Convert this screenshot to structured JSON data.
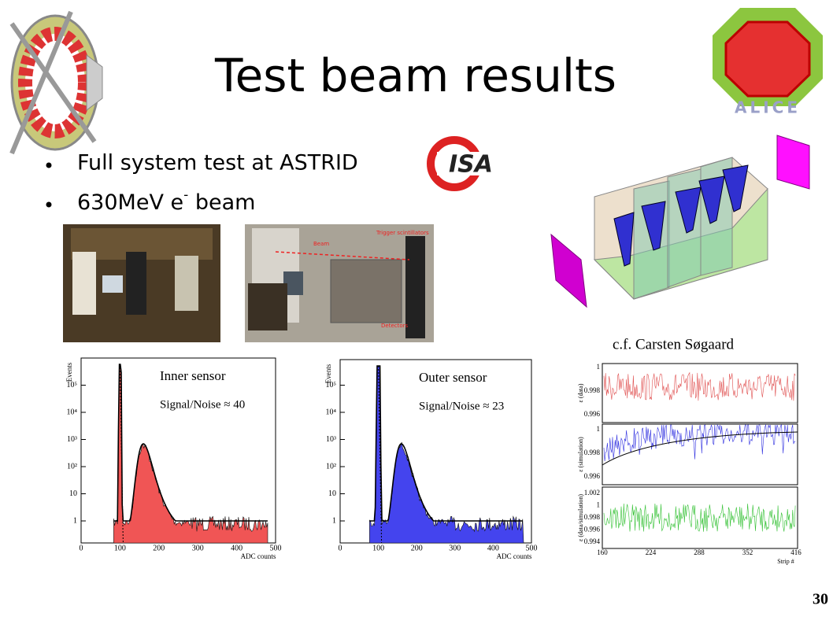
{
  "title": "Test beam results",
  "bullets": [
    {
      "text": "Full system test at ASTRID"
    },
    {
      "text": "630MeV e",
      "sup": "-",
      "after": " beam"
    }
  ],
  "logo_text": "ISA",
  "alice_text": "ALICE",
  "photo_labels": [
    "Beam",
    "Trigger scintillators",
    "Detectors"
  ],
  "credit": "c.f. Carsten Søgaard",
  "page_number": "30",
  "plots": [
    {
      "label": "Inner sensor",
      "snr": "Signal/Noise ≈ 40",
      "y_label": "Events",
      "x_label": "ADC counts",
      "yticks": [
        "1",
        "10",
        "10²",
        "10³",
        "10⁴",
        "10⁵"
      ],
      "xticks": [
        "0",
        "100",
        "200",
        "300",
        "400",
        "500"
      ]
    },
    {
      "label": "Outer sensor",
      "snr": "Signal/Noise ≈ 23",
      "y_label": "Events",
      "x_label": "ADC counts",
      "yticks": [
        "1",
        "10",
        "10²",
        "10³",
        "10⁴",
        "10⁵"
      ],
      "xticks": [
        "0",
        "100",
        "200",
        "300",
        "400",
        "500"
      ]
    }
  ],
  "efficiency": {
    "panels": [
      {
        "y_label": "ε (data)",
        "yticks": [
          "0.996",
          "0.998",
          "1"
        ]
      },
      {
        "y_label": "ε (simulation)",
        "yticks": [
          "0.996",
          "0.998",
          "1"
        ]
      },
      {
        "y_label": "ε (data/simulation)",
        "yticks": [
          "0.994",
          "0.996",
          "0.998",
          "1",
          "1.002"
        ]
      }
    ],
    "xticks": [
      "160",
      "224",
      "288",
      "352",
      "416"
    ],
    "x_label": "Strip #"
  }
}
